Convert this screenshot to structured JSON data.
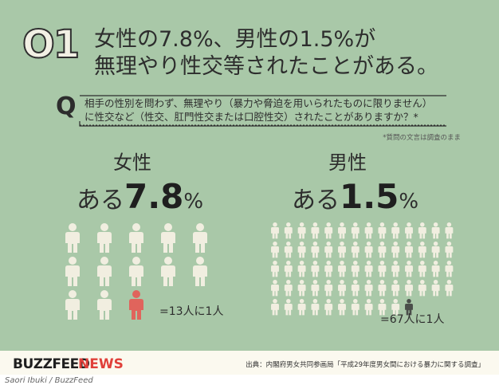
{
  "headline": {
    "mark": "O1",
    "line1": "女性の7.8%、男性の1.5%が",
    "line2": "無理やり性交等されたことがある。"
  },
  "question": {
    "letter": "Q",
    "line1": "相手の性別を問わず、無理やり（暴力や脅迫を用いられたものに限りません）",
    "line2": "に性交など（性交、肛門性交または口腔性交）されたことがありますか？*",
    "note": "*質問の文言は調査のまま"
  },
  "female": {
    "heading": "女性",
    "prefix": "ある",
    "number": "7.8",
    "percent": "%",
    "ratio": "=13人に1人",
    "total_figures": 13,
    "highlighted_figures": 1
  },
  "male": {
    "heading": "男性",
    "prefix": "ある",
    "number": "1.5",
    "percent": "%",
    "ratio": "=67人に1人",
    "total_figures": 67,
    "highlighted_figures": 1
  },
  "colors": {
    "background": "#a9c8a8",
    "figure": "#f1eee0",
    "female_highlight": "#e0645c",
    "male_highlight": "#4a4e4a",
    "brand_red": "#e0403a"
  },
  "footer": {
    "brand_buzz": "BUZZFEED",
    "brand_news": "NEWS",
    "source": "出典：内閣府男女共同参画局「平成29年度男女間における暴力に関する調査」"
  },
  "credit": "Saori Ibuki / BuzzFeed"
}
